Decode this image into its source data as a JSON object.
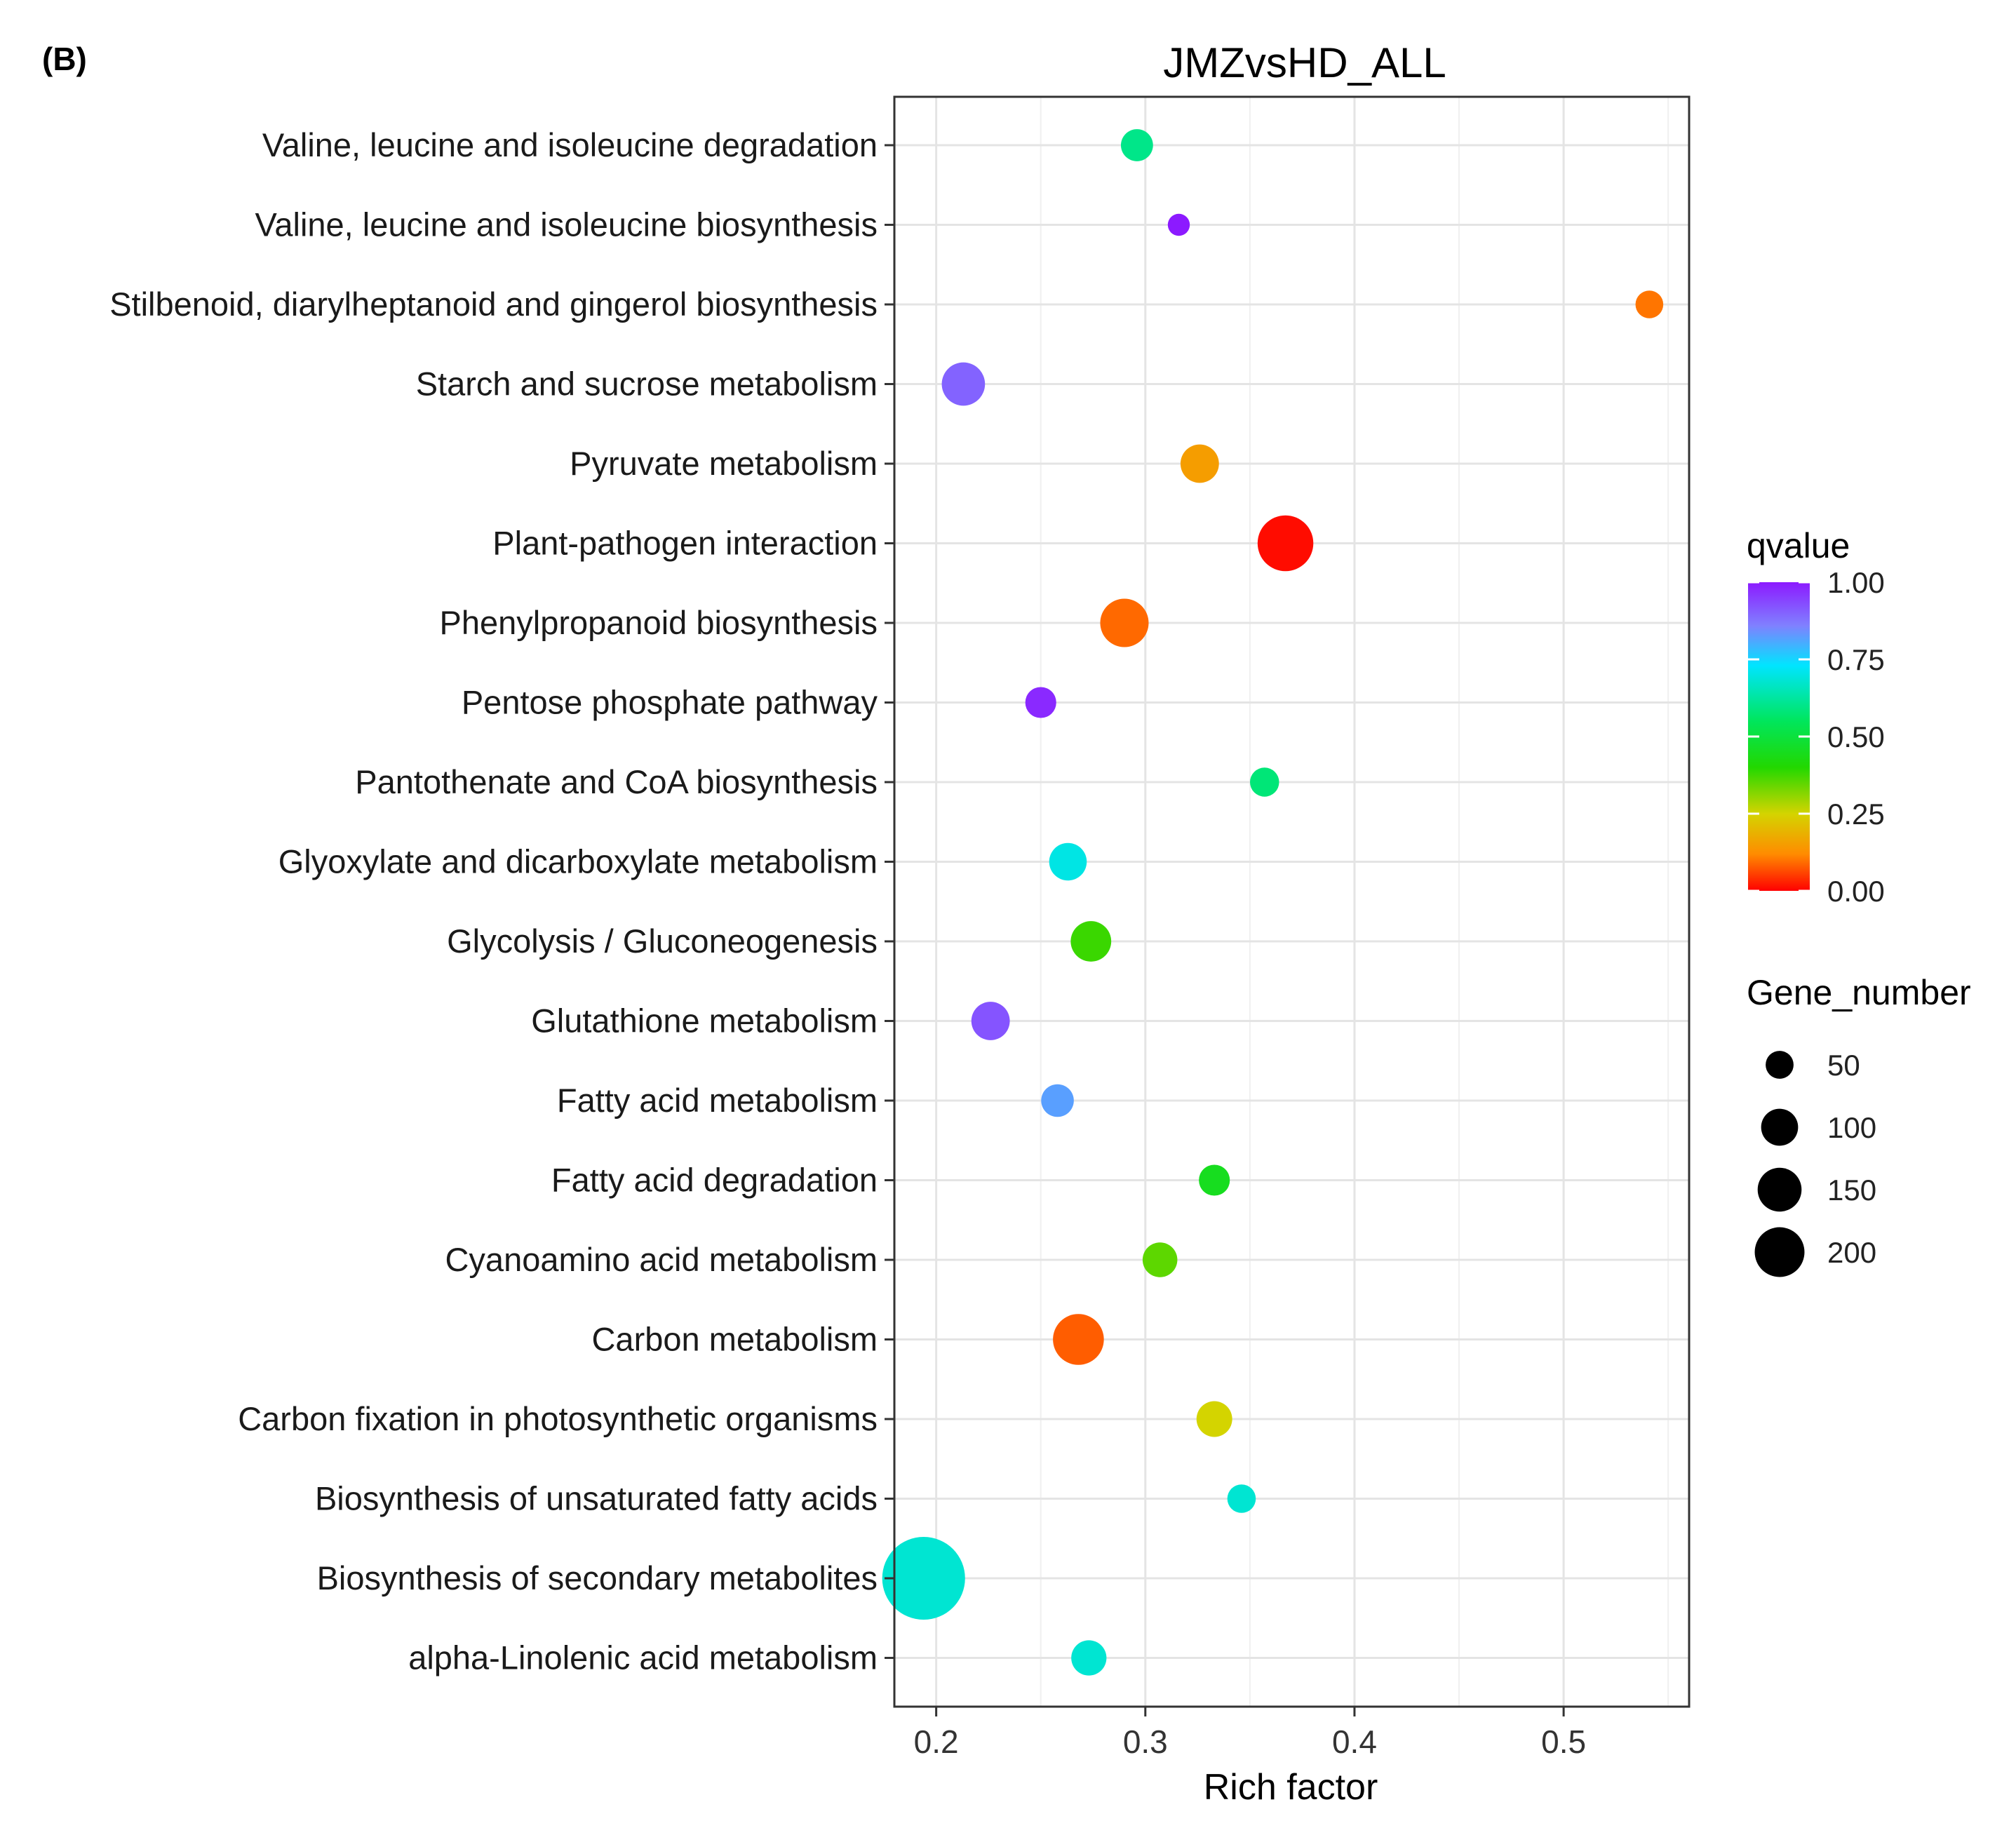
{
  "panel_label": "(B)",
  "chart_data": {
    "type": "scatter",
    "title": "JMZvsHD_ALL",
    "xlabel": "Rich factor",
    "ylabel": "",
    "xlim": [
      0.18,
      0.56
    ],
    "xticks": [
      0.2,
      0.3,
      0.4,
      0.5
    ],
    "xtick_labels": [
      "0.2",
      "0.3",
      "0.4",
      "0.5"
    ],
    "categories": [
      "Valine, leucine and isoleucine degradation",
      "Valine, leucine and isoleucine biosynthesis",
      "Stilbenoid, diarylheptanoid and gingerol biosynthesis",
      "Starch and sucrose metabolism",
      "Pyruvate metabolism",
      "Plant-pathogen interaction",
      "Phenylpropanoid biosynthesis",
      "Pentose phosphate pathway",
      "Pantothenate and CoA biosynthesis",
      "Glyoxylate and dicarboxylate metabolism",
      "Glycolysis / Gluconeogenesis",
      "Glutathione metabolism",
      "Fatty acid metabolism",
      "Fatty acid degradation",
      "Cyanoamino acid metabolism",
      "Carbon metabolism",
      "Carbon fixation in photosynthetic organisms",
      "Biosynthesis of unsaturated fatty acids",
      "Biosynthesis of secondary metabolites",
      "alpha-Linolenic acid metabolism"
    ],
    "points": [
      {
        "category": "Valine, leucine and isoleucine degradation",
        "rich_factor": 0.296,
        "qvalue": 0.6,
        "gene_number": 20
      },
      {
        "category": "Valine, leucine and isoleucine biosynthesis",
        "rich_factor": 0.316,
        "qvalue": 1.0,
        "gene_number": 6
      },
      {
        "category": "Stilbenoid, diarylheptanoid and gingerol biosynthesis",
        "rich_factor": 0.541,
        "qvalue": 0.1,
        "gene_number": 13
      },
      {
        "category": "Starch and sucrose metabolism",
        "rich_factor": 0.213,
        "qvalue": 0.9,
        "gene_number": 45
      },
      {
        "category": "Pyruvate metabolism",
        "rich_factor": 0.326,
        "qvalue": 0.15,
        "gene_number": 33
      },
      {
        "category": "Plant-pathogen interaction",
        "rich_factor": 0.367,
        "qvalue": 0.01,
        "gene_number": 85
      },
      {
        "category": "Phenylpropanoid biosynthesis",
        "rich_factor": 0.29,
        "qvalue": 0.09,
        "gene_number": 60
      },
      {
        "category": "Pentose phosphate pathway",
        "rich_factor": 0.25,
        "qvalue": 0.98,
        "gene_number": 18
      },
      {
        "category": "Pantothenate and CoA biosynthesis",
        "rich_factor": 0.357,
        "qvalue": 0.58,
        "gene_number": 15
      },
      {
        "category": "Glyoxylate and dicarboxylate metabolism",
        "rich_factor": 0.263,
        "qvalue": 0.7,
        "gene_number": 31
      },
      {
        "category": "Glycolysis / Gluconeogenesis",
        "rich_factor": 0.274,
        "qvalue": 0.38,
        "gene_number": 38
      },
      {
        "category": "Glutathione metabolism",
        "rich_factor": 0.226,
        "qvalue": 0.92,
        "gene_number": 33
      },
      {
        "category": "Fatty acid metabolism",
        "rich_factor": 0.258,
        "qvalue": 0.82,
        "gene_number": 21
      },
      {
        "category": "Fatty acid degradation",
        "rich_factor": 0.333,
        "qvalue": 0.45,
        "gene_number": 18
      },
      {
        "category": "Cyanoamino acid metabolism",
        "rich_factor": 0.307,
        "qvalue": 0.35,
        "gene_number": 25
      },
      {
        "category": "Carbon metabolism",
        "rich_factor": 0.268,
        "qvalue": 0.08,
        "gene_number": 68
      },
      {
        "category": "Carbon fixation in photosynthetic organisms",
        "rich_factor": 0.333,
        "qvalue": 0.25,
        "gene_number": 27
      },
      {
        "category": "Biosynthesis of unsaturated fatty acids",
        "rich_factor": 0.346,
        "qvalue": 0.68,
        "gene_number": 14
      },
      {
        "category": "Biosynthesis of secondary metabolites",
        "rich_factor": 0.194,
        "qvalue": 0.68,
        "gene_number": 215
      },
      {
        "category": "alpha-Linolenic acid metabolism",
        "rich_factor": 0.273,
        "qvalue": 0.68,
        "gene_number": 26
      }
    ],
    "color_legend": {
      "title": "qvalue",
      "ticks": [
        1.0,
        0.75,
        0.5,
        0.25,
        0.0
      ],
      "tick_labels": [
        "1.00",
        "0.75",
        "0.50",
        "0.25",
        "0.00"
      ],
      "gradient": [
        "#8c1aff",
        "#8080ff",
        "#00e5ff",
        "#00e65c",
        "#22d800",
        "#d4d400",
        "#ff8c00",
        "#ff0000"
      ]
    },
    "size_legend": {
      "title": "Gene_number",
      "values": [
        50,
        100,
        150,
        200
      ],
      "labels": [
        "50",
        "100",
        "150",
        "200"
      ]
    },
    "grid": true
  }
}
